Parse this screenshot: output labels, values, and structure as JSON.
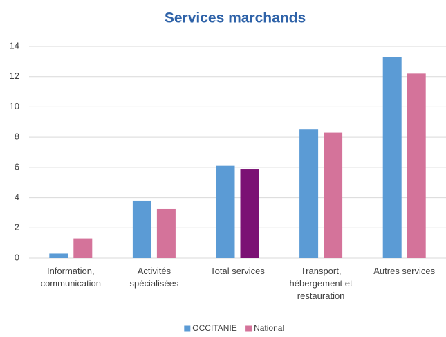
{
  "chart_data": {
    "type": "bar",
    "title": "Services marchands",
    "categories": [
      "Information,\ncommunication",
      "Activités\nspécialisées",
      "Total services",
      "Transport,\nhébergement et\nrestauration",
      "Autres services"
    ],
    "series": [
      {
        "name": "OCCITANIE",
        "color": "#5b9bd5",
        "values": [
          0.3,
          3.8,
          6.1,
          8.5,
          13.3
        ]
      },
      {
        "name": "National",
        "color": "#d4739a",
        "colors": [
          "#d4739a",
          "#d4739a",
          "#7b1174",
          "#d4739a",
          "#d4739a"
        ],
        "values": [
          1.3,
          3.25,
          5.9,
          8.3,
          12.2
        ]
      }
    ],
    "ylim": [
      0,
      14
    ],
    "yticks": [
      0,
      2,
      4,
      6,
      8,
      10,
      12,
      14
    ],
    "grid": true,
    "legend": "bottom"
  }
}
